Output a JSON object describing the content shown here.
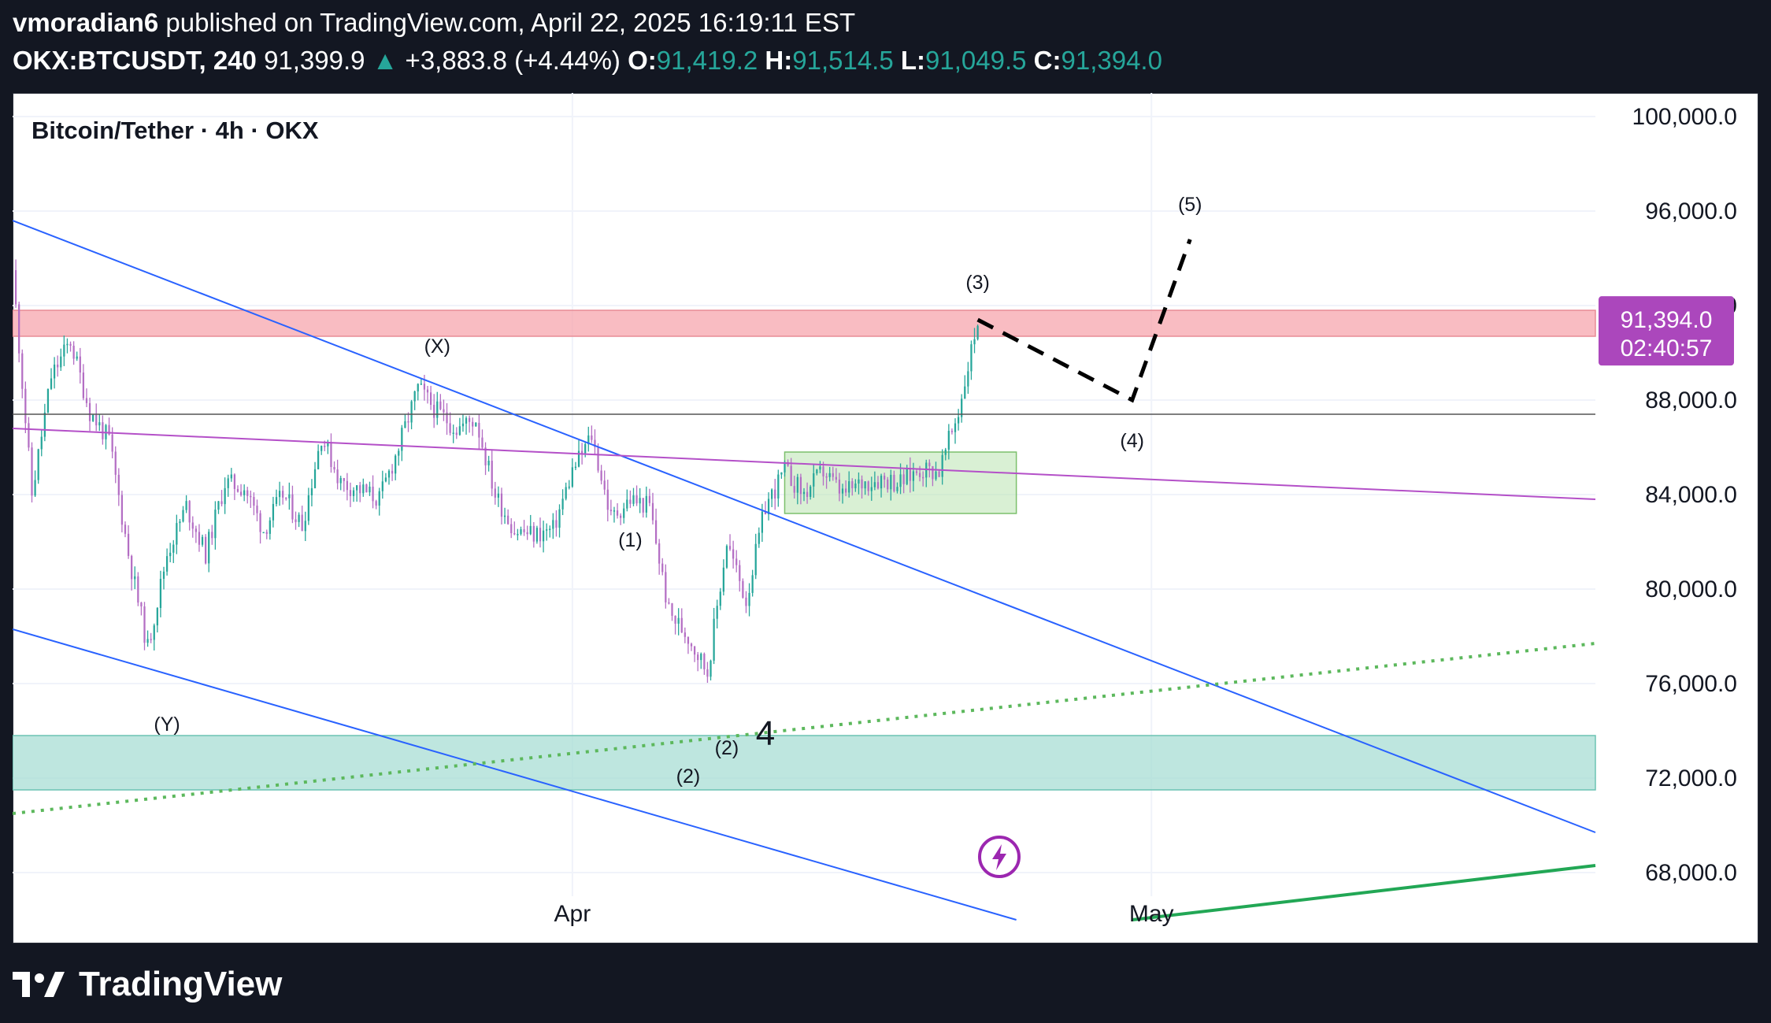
{
  "header": {
    "publisher": "vmoradian6",
    "published_text": "published on TradingView.com, April 22, 2025 16:19:11 EST",
    "symbol": "OKX:BTCUSDT, 240",
    "last": "91,399.9",
    "change": "+3,883.8 (+4.44%)",
    "o_label": "O:",
    "o_value": "91,419.2",
    "h_label": "H:",
    "h_value": "91,514.5",
    "l_label": "L:",
    "l_value": "91,049.5",
    "c_label": "C:",
    "c_value": "91,394.0"
  },
  "footer": {
    "brand": "TradingView"
  },
  "colors": {
    "bull": "#26a69a",
    "bear": "#b46ec4",
    "trendline": "#2962ff",
    "resistance_zone": "#f7a5ad",
    "support_zone": "#a8ddd4",
    "consolidation_box": "#b9e4b0",
    "price_badge": "#ab47bc",
    "projection": "#000000",
    "green_line": "#22a755"
  },
  "chart_data": {
    "type": "candlestick",
    "title": "Bitcoin/Tether · 4h · OKX",
    "x_range": [
      "2025-03-03",
      "2025-05-24"
    ],
    "x_ticks": [
      {
        "date": "2025-04-01",
        "label": "Apr"
      },
      {
        "date": "2025-05-01",
        "label": "May"
      }
    ],
    "y_range": [
      65000,
      101000
    ],
    "y_ticks": [
      {
        "value": 100000,
        "label": "100,000.0"
      },
      {
        "value": 96000,
        "label": "96,000.0"
      },
      {
        "value": 92000,
        "label": "92,000.0"
      },
      {
        "value": 88000,
        "label": "88,000.0"
      },
      {
        "value": 84000,
        "label": "84,000.0"
      },
      {
        "value": 80000,
        "label": "80,000.0"
      },
      {
        "value": 76000,
        "label": "76,000.0"
      },
      {
        "value": 72000,
        "label": "72,000.0"
      },
      {
        "value": 68000,
        "label": "68,000.0"
      }
    ],
    "current_price": {
      "value": 91394,
      "label": "91,394.0",
      "countdown": "02:40:57"
    },
    "price_path": [
      {
        "date": "2025-03-03",
        "price": 93500
      },
      {
        "date": "2025-03-04",
        "price": 84000
      },
      {
        "date": "2025-03-05",
        "price": 89000
      },
      {
        "date": "2025-03-06",
        "price": 90500
      },
      {
        "date": "2025-03-07",
        "price": 87500
      },
      {
        "date": "2025-03-08",
        "price": 86300
      },
      {
        "date": "2025-03-09",
        "price": 81500
      },
      {
        "date": "2025-03-10",
        "price": 77500
      },
      {
        "date": "2025-03-11",
        "price": 81500
      },
      {
        "date": "2025-03-12",
        "price": 83500
      },
      {
        "date": "2025-03-13",
        "price": 81500
      },
      {
        "date": "2025-03-14",
        "price": 84500
      },
      {
        "date": "2025-03-15",
        "price": 84300
      },
      {
        "date": "2025-03-16",
        "price": 82500
      },
      {
        "date": "2025-03-17",
        "price": 84000
      },
      {
        "date": "2025-03-18",
        "price": 82700
      },
      {
        "date": "2025-03-19",
        "price": 86500
      },
      {
        "date": "2025-03-20",
        "price": 84500
      },
      {
        "date": "2025-03-21",
        "price": 84200
      },
      {
        "date": "2025-03-22",
        "price": 83800
      },
      {
        "date": "2025-03-23",
        "price": 86000
      },
      {
        "date": "2025-03-24",
        "price": 88500
      },
      {
        "date": "2025-03-25",
        "price": 87500
      },
      {
        "date": "2025-03-26",
        "price": 86800
      },
      {
        "date": "2025-03-27",
        "price": 87200
      },
      {
        "date": "2025-03-28",
        "price": 84000
      },
      {
        "date": "2025-03-29",
        "price": 82500
      },
      {
        "date": "2025-03-30",
        "price": 82300
      },
      {
        "date": "2025-03-31",
        "price": 82500
      },
      {
        "date": "2025-04-01",
        "price": 85000
      },
      {
        "date": "2025-04-02",
        "price": 86500
      },
      {
        "date": "2025-04-03",
        "price": 83000
      },
      {
        "date": "2025-04-04",
        "price": 83800
      },
      {
        "date": "2025-04-05",
        "price": 83500
      },
      {
        "date": "2025-04-06",
        "price": 79000
      },
      {
        "date": "2025-04-07",
        "price": 78000
      },
      {
        "date": "2025-04-08",
        "price": 76500
      },
      {
        "date": "2025-04-09",
        "price": 82000
      },
      {
        "date": "2025-04-10",
        "price": 79500
      },
      {
        "date": "2025-04-11",
        "price": 83500
      },
      {
        "date": "2025-04-12",
        "price": 85000
      },
      {
        "date": "2025-04-13",
        "price": 84000
      },
      {
        "date": "2025-04-14",
        "price": 85000
      },
      {
        "date": "2025-04-15",
        "price": 84000
      },
      {
        "date": "2025-04-16",
        "price": 84500
      },
      {
        "date": "2025-04-17",
        "price": 84700
      },
      {
        "date": "2025-04-18",
        "price": 84500
      },
      {
        "date": "2025-04-19",
        "price": 85100
      },
      {
        "date": "2025-04-20",
        "price": 85000
      },
      {
        "date": "2025-04-21",
        "price": 87500
      },
      {
        "date": "2025-04-22",
        "price": 91400
      }
    ],
    "wave_labels": [
      {
        "text": "(Y)",
        "date": "2025-03-11",
        "price": 74000
      },
      {
        "text": "(X)",
        "date": "2025-03-25",
        "price": 90000
      },
      {
        "text": "(1)",
        "date": "2025-04-04",
        "price": 81800
      },
      {
        "text": "(2)",
        "date": "2025-04-07",
        "price": 71800
      },
      {
        "text": "(2)",
        "date": "2025-04-09",
        "price": 73000
      },
      {
        "text": "4",
        "date": "2025-04-11",
        "price": 73400
      },
      {
        "text": "(3)",
        "date": "2025-04-22",
        "price": 92700
      },
      {
        "text": "(4)",
        "date": "2025-04-30",
        "price": 86000
      },
      {
        "text": "(5)",
        "date": "2025-05-03",
        "price": 96000
      }
    ],
    "projection_path": [
      {
        "date": "2025-04-22",
        "price": 91400
      },
      {
        "date": "2025-04-30",
        "price": 88000
      },
      {
        "date": "2025-05-03",
        "price": 94800
      }
    ],
    "zones": [
      {
        "name": "resistance",
        "price_from": 90700,
        "price_to": 91800
      },
      {
        "name": "support",
        "price_from": 71500,
        "price_to": 73800
      },
      {
        "name": "consolidation",
        "date_from": "2025-04-12",
        "date_to": "2025-04-24",
        "price_from": 83200,
        "price_to": 85800
      }
    ],
    "lines": [
      {
        "name": "horizontal",
        "price": 87400
      },
      {
        "name": "upper-channel",
        "from": {
          "date": "2025-03-03",
          "price": 95600
        },
        "to": {
          "date": "2025-05-24",
          "price": 69700
        }
      },
      {
        "name": "lower-channel",
        "from": {
          "date": "2025-03-03",
          "price": 78300
        },
        "to": {
          "date": "2025-04-24",
          "price": 66000
        }
      },
      {
        "name": "slanted-magenta",
        "from": {
          "date": "2025-03-03",
          "price": 86800
        },
        "to": {
          "date": "2025-05-24",
          "price": 83800
        }
      },
      {
        "name": "dotted-support",
        "from": {
          "date": "2025-03-03",
          "price": 70500
        },
        "to": {
          "date": "2025-05-24",
          "price": 77700
        }
      },
      {
        "name": "green-trend",
        "from": {
          "date": "2025-04-30",
          "price": 66000
        },
        "to": {
          "date": "2025-05-24",
          "price": 68300
        }
      }
    ],
    "grid": true
  }
}
